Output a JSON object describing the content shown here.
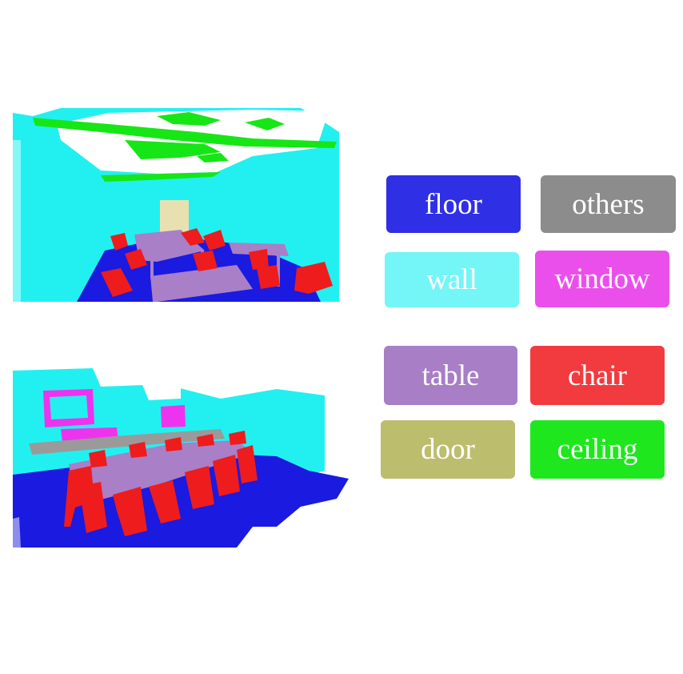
{
  "legend": {
    "items": [
      {
        "id": "floor",
        "label": "floor",
        "color": "#2f2fe6"
      },
      {
        "id": "others",
        "label": "others",
        "color": "#8c8c8c"
      },
      {
        "id": "wall",
        "label": "wall",
        "color": "#74f5f6"
      },
      {
        "id": "window",
        "label": "window",
        "color": "#eb4feb"
      },
      {
        "id": "table",
        "label": "table",
        "color": "#a87ec6"
      },
      {
        "id": "chair",
        "label": "chair",
        "color": "#f23b3f"
      },
      {
        "id": "door",
        "label": "door",
        "color": "#bdbd6e"
      },
      {
        "id": "ceiling",
        "label": "ceiling",
        "color": "#1ee71e"
      }
    ]
  },
  "scenes": {
    "colors": {
      "floor": "#1a1ae0",
      "wall": "#22f0f0",
      "ceiling": "#16e616",
      "chair": "#ee1c1c",
      "table": "#a97fc7",
      "door": "#e8e0b0",
      "window": "#ee33ee",
      "others": "#9a9a9a"
    }
  }
}
